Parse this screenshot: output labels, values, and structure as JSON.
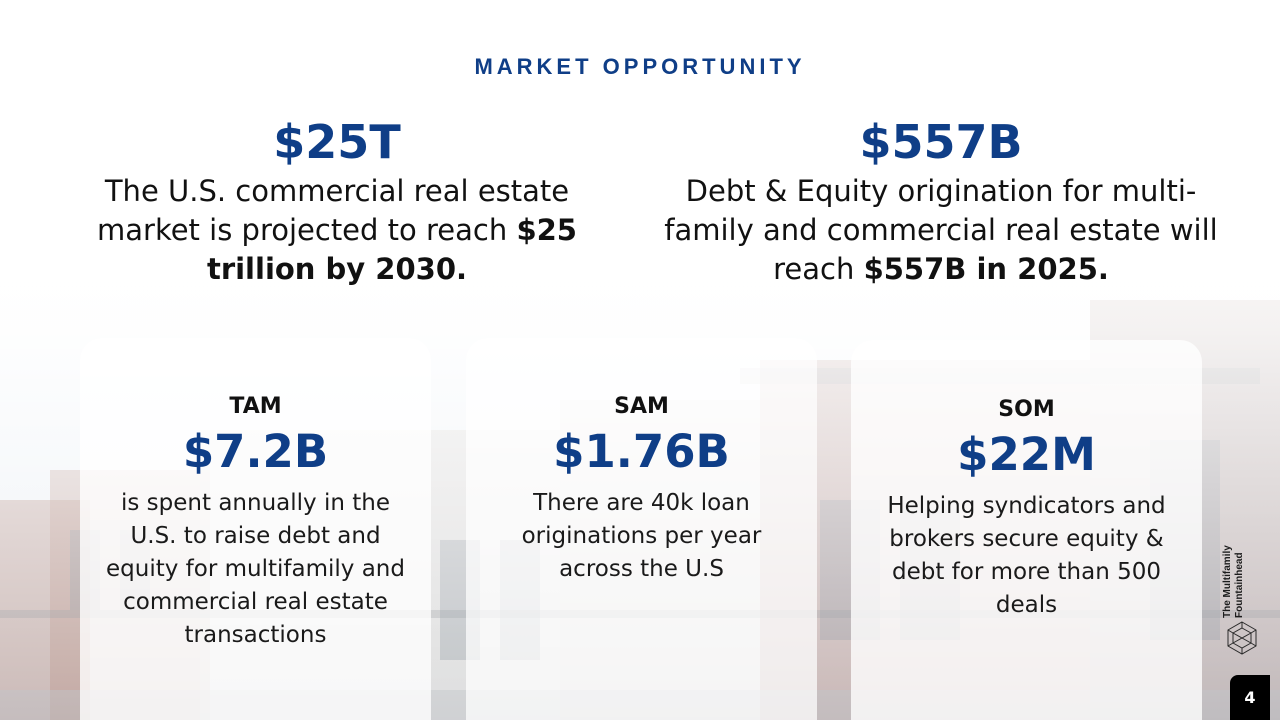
{
  "header": {
    "section_title": "MARKET OPPORTUNITY"
  },
  "headlines": [
    {
      "value": "$25T",
      "desc_prefix": "The U.S. commercial real estate market is projected to reach ",
      "desc_bold": "$25 trillion by 2030."
    },
    {
      "value": "$557B",
      "desc_prefix": "Debt & Equity origination for multi-family and commercial real estate will reach ",
      "desc_bold": "$557B in 2025."
    }
  ],
  "cards": [
    {
      "label": "TAM",
      "value": "$7.2B",
      "body": "is spent annually in the U.S. to raise debt and equity for multifamily and commercial real estate transactions"
    },
    {
      "label": "SAM",
      "value": "$1.76B",
      "body": "There are 40k loan originations per year across the U.S"
    },
    {
      "label": "SOM",
      "value": "$22M",
      "body": "Helping syndicators and brokers secure equity & debt for more than 500 deals"
    }
  ],
  "logo": {
    "line1": "The Multifamily",
    "line2": "Fountainhead",
    "icon": "geodesic-hexagon-icon"
  },
  "page_number": "4",
  "colors": {
    "accent": "#0f3e87",
    "text": "#111111"
  }
}
